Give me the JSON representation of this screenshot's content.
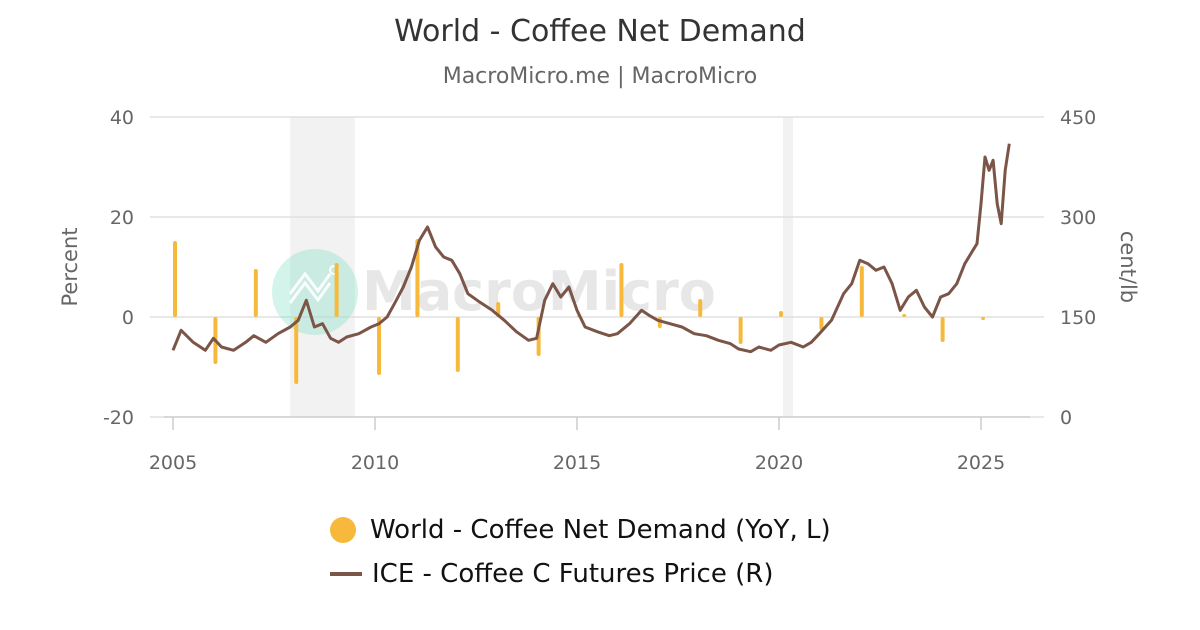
{
  "header": {
    "title": "World - Coffee Net Demand",
    "subtitle": "MacroMicro.me | MacroMicro"
  },
  "watermark": "MacroMicro",
  "legend": [
    {
      "label": "World - Coffee Net Demand (YoY, L)",
      "color": "#F6B93B",
      "symbol": "dot"
    },
    {
      "label": "ICE - Coffee C Futures Price (R)",
      "color": "#7B5547",
      "symbol": "line"
    }
  ],
  "axes": {
    "left": {
      "title": "Percent",
      "ticks": [
        "40",
        "20",
        "0",
        "-20"
      ]
    },
    "right": {
      "title": "cent/lb",
      "ticks": [
        "450",
        "300",
        "150",
        "0"
      ]
    },
    "x": {
      "ticks": [
        "2005",
        "2010",
        "2015",
        "2020",
        "2025"
      ]
    }
  },
  "chart_data": {
    "type": "bar+line",
    "title": "World - Coffee Net Demand",
    "subtitle": "MacroMicro.me | MacroMicro",
    "xlabel": "",
    "ylabel_left": "Percent",
    "ylabel_right": "cent/lb",
    "ylim_left": [
      -20,
      40
    ],
    "ylim_right": [
      0,
      450
    ],
    "xlim": [
      2004.8,
      2026.2
    ],
    "grid": true,
    "legend_position": "bottom",
    "shaded_periods": [
      [
        2007.9,
        2009.5
      ],
      [
        2020.1,
        2020.35
      ]
    ],
    "series": [
      {
        "name": "World - Coffee Net Demand (YoY, L)",
        "type": "bar",
        "axis": "left",
        "color": "#F6B93B",
        "x": [
          2005.05,
          2006.05,
          2007.05,
          2008.05,
          2009.05,
          2010.1,
          2011.05,
          2012.05,
          2013.05,
          2014.05,
          2015.05,
          2016.1,
          2017.05,
          2018.05,
          2019.05,
          2020.05,
          2021.05,
          2022.05,
          2023.1,
          2024.05,
          2025.05
        ],
        "values": [
          15.2,
          -9.4,
          9.6,
          -13.4,
          10.8,
          -11.6,
          15.6,
          -11.0,
          3.0,
          -7.8,
          0.4,
          10.8,
          -2.2,
          3.6,
          -5.4,
          1.2,
          -2.6,
          10.2,
          0.6,
          -5.0,
          -0.6
        ]
      },
      {
        "name": "ICE - Coffee C Futures Price (R)",
        "type": "line",
        "axis": "right",
        "color": "#7B5547",
        "x": [
          2005.0,
          2005.2,
          2005.5,
          2005.8,
          2006.0,
          2006.2,
          2006.5,
          2006.8,
          2007.0,
          2007.3,
          2007.6,
          2007.9,
          2008.1,
          2008.3,
          2008.5,
          2008.7,
          2008.9,
          2009.1,
          2009.3,
          2009.6,
          2009.9,
          2010.1,
          2010.3,
          2010.5,
          2010.7,
          2010.9,
          2011.1,
          2011.3,
          2011.5,
          2011.7,
          2011.9,
          2012.1,
          2012.3,
          2012.6,
          2012.9,
          2013.2,
          2013.5,
          2013.8,
          2014.0,
          2014.2,
          2014.4,
          2014.6,
          2014.8,
          2015.0,
          2015.2,
          2015.5,
          2015.8,
          2016.0,
          2016.3,
          2016.6,
          2016.8,
          2017.0,
          2017.3,
          2017.6,
          2017.9,
          2018.2,
          2018.5,
          2018.8,
          2019.0,
          2019.3,
          2019.5,
          2019.8,
          2020.0,
          2020.3,
          2020.6,
          2020.8,
          2021.0,
          2021.3,
          2021.6,
          2021.8,
          2022.0,
          2022.2,
          2022.4,
          2022.6,
          2022.8,
          2023.0,
          2023.2,
          2023.4,
          2023.6,
          2023.8,
          2024.0,
          2024.2,
          2024.4,
          2024.6,
          2024.8,
          2024.9,
          2025.0,
          2025.1,
          2025.2,
          2025.3,
          2025.4,
          2025.5,
          2025.6,
          2025.7
        ],
        "values": [
          100,
          130,
          112,
          100,
          118,
          105,
          100,
          112,
          122,
          112,
          125,
          135,
          145,
          175,
          135,
          140,
          118,
          112,
          120,
          125,
          135,
          140,
          150,
          172,
          195,
          225,
          265,
          285,
          255,
          240,
          235,
          215,
          185,
          172,
          160,
          145,
          128,
          115,
          118,
          175,
          200,
          180,
          195,
          160,
          135,
          128,
          122,
          125,
          140,
          160,
          152,
          145,
          140,
          135,
          125,
          122,
          115,
          110,
          102,
          98,
          105,
          100,
          108,
          112,
          105,
          112,
          125,
          145,
          185,
          200,
          235,
          230,
          220,
          225,
          200,
          160,
          180,
          190,
          165,
          150,
          180,
          185,
          200,
          230,
          250,
          260,
          320,
          390,
          370,
          385,
          320,
          290,
          370,
          410
        ]
      }
    ]
  }
}
